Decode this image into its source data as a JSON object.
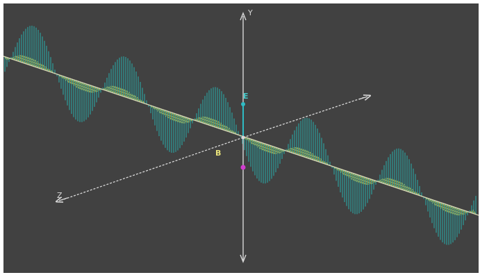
{
  "diagram": {
    "axes": {
      "y_label": "Y",
      "z_label": "Z"
    },
    "fields": {
      "electric_label": "E",
      "magnetic_label": "B"
    },
    "colors": {
      "background": "#414141",
      "axes": "#d8d8d8",
      "electric_wave": "#2aa6a4",
      "magnetic_wave": "#dcd24a",
      "origin_marker": "#d33cd0",
      "e_vector_tip": "#2fbcc4"
    }
  }
}
